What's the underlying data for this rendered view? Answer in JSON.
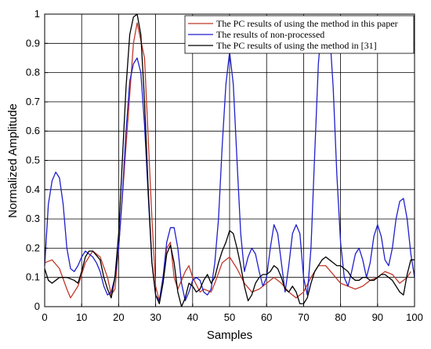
{
  "chart_data": {
    "type": "line",
    "xlabel": "Samples",
    "ylabel": "Normalized  Amplitude",
    "xlim": [
      0,
      100
    ],
    "ylim": [
      0,
      1
    ],
    "x_ticks": [
      0,
      10,
      20,
      30,
      40,
      50,
      60,
      70,
      80,
      90,
      100
    ],
    "y_ticks": [
      0,
      0.1,
      0.2,
      0.3,
      0.4,
      0.5,
      0.6,
      0.7,
      0.8,
      0.9,
      1
    ],
    "grid": true,
    "legend_position": "top-right",
    "series": [
      {
        "name": "The PC results of using the method in this paper",
        "color": "#c0392b",
        "points": [
          [
            0,
            0.15
          ],
          [
            2,
            0.16
          ],
          [
            4,
            0.13
          ],
          [
            6,
            0.06
          ],
          [
            7,
            0.03
          ],
          [
            9,
            0.07
          ],
          [
            11,
            0.15
          ],
          [
            13,
            0.19
          ],
          [
            15,
            0.17
          ],
          [
            17,
            0.1
          ],
          [
            18,
            0.04
          ],
          [
            19,
            0.06
          ],
          [
            20,
            0.2
          ],
          [
            22,
            0.55
          ],
          [
            24,
            0.9
          ],
          [
            25,
            0.97
          ],
          [
            27,
            0.85
          ],
          [
            29,
            0.3
          ],
          [
            30,
            0.07
          ],
          [
            31,
            0.02
          ],
          [
            32,
            0.1
          ],
          [
            33,
            0.2
          ],
          [
            34,
            0.22
          ],
          [
            35,
            0.1
          ],
          [
            36,
            0.06
          ],
          [
            38,
            0.12
          ],
          [
            39,
            0.14
          ],
          [
            40,
            0.1
          ],
          [
            42,
            0.05
          ],
          [
            43,
            0.06
          ],
          [
            45,
            0.05
          ],
          [
            46,
            0.08
          ],
          [
            48,
            0.15
          ],
          [
            50,
            0.17
          ],
          [
            52,
            0.13
          ],
          [
            54,
            0.08
          ],
          [
            56,
            0.05
          ],
          [
            58,
            0.06
          ],
          [
            60,
            0.08
          ],
          [
            62,
            0.1
          ],
          [
            64,
            0.08
          ],
          [
            66,
            0.05
          ],
          [
            68,
            0.03
          ],
          [
            70,
            0.05
          ],
          [
            72,
            0.1
          ],
          [
            74,
            0.14
          ],
          [
            76,
            0.14
          ],
          [
            78,
            0.11
          ],
          [
            80,
            0.08
          ],
          [
            82,
            0.07
          ],
          [
            84,
            0.06
          ],
          [
            86,
            0.07
          ],
          [
            88,
            0.09
          ],
          [
            90,
            0.1
          ],
          [
            92,
            0.12
          ],
          [
            94,
            0.11
          ],
          [
            96,
            0.08
          ],
          [
            98,
            0.1
          ],
          [
            99,
            0.12
          ]
        ]
      },
      {
        "name": "The results of non-processed",
        "color": "#1f1fcc",
        "points": [
          [
            0,
            0.14
          ],
          [
            1,
            0.35
          ],
          [
            2,
            0.43
          ],
          [
            3,
            0.46
          ],
          [
            4,
            0.44
          ],
          [
            5,
            0.35
          ],
          [
            6,
            0.2
          ],
          [
            7,
            0.13
          ],
          [
            8,
            0.12
          ],
          [
            9,
            0.14
          ],
          [
            10,
            0.17
          ],
          [
            11,
            0.19
          ],
          [
            12,
            0.18
          ],
          [
            13,
            0.17
          ],
          [
            14,
            0.15
          ],
          [
            15,
            0.12
          ],
          [
            16,
            0.07
          ],
          [
            17,
            0.04
          ],
          [
            18,
            0.05
          ],
          [
            19,
            0.1
          ],
          [
            20,
            0.2
          ],
          [
            21,
            0.38
          ],
          [
            22,
            0.6
          ],
          [
            23,
            0.77
          ],
          [
            24,
            0.83
          ],
          [
            25,
            0.85
          ],
          [
            26,
            0.8
          ],
          [
            27,
            0.62
          ],
          [
            28,
            0.38
          ],
          [
            29,
            0.15
          ],
          [
            30,
            0.04
          ],
          [
            31,
            0.02
          ],
          [
            32,
            0.1
          ],
          [
            33,
            0.22
          ],
          [
            34,
            0.27
          ],
          [
            35,
            0.27
          ],
          [
            36,
            0.2
          ],
          [
            37,
            0.08
          ],
          [
            38,
            0.02
          ],
          [
            39,
            0.05
          ],
          [
            40,
            0.09
          ],
          [
            41,
            0.1
          ],
          [
            42,
            0.09
          ],
          [
            43,
            0.05
          ],
          [
            44,
            0.04
          ],
          [
            45,
            0.06
          ],
          [
            46,
            0.15
          ],
          [
            47,
            0.3
          ],
          [
            48,
            0.55
          ],
          [
            49,
            0.76
          ],
          [
            50,
            0.87
          ],
          [
            51,
            0.76
          ],
          [
            52,
            0.5
          ],
          [
            53,
            0.25
          ],
          [
            54,
            0.12
          ],
          [
            55,
            0.17
          ],
          [
            56,
            0.2
          ],
          [
            57,
            0.18
          ],
          [
            58,
            0.12
          ],
          [
            59,
            0.07
          ],
          [
            60,
            0.1
          ],
          [
            61,
            0.2
          ],
          [
            62,
            0.28
          ],
          [
            63,
            0.25
          ],
          [
            64,
            0.15
          ],
          [
            65,
            0.05
          ],
          [
            66,
            0.14
          ],
          [
            67,
            0.25
          ],
          [
            68,
            0.28
          ],
          [
            69,
            0.25
          ],
          [
            70,
            0.1
          ],
          [
            71,
            0.04
          ],
          [
            72,
            0.2
          ],
          [
            73,
            0.52
          ],
          [
            74,
            0.83
          ],
          [
            75,
            0.98
          ],
          [
            76,
            0.99
          ],
          [
            77,
            0.95
          ],
          [
            78,
            0.75
          ],
          [
            79,
            0.45
          ],
          [
            80,
            0.22
          ],
          [
            81,
            0.1
          ],
          [
            82,
            0.07
          ],
          [
            83,
            0.12
          ],
          [
            84,
            0.18
          ],
          [
            85,
            0.2
          ],
          [
            86,
            0.16
          ],
          [
            87,
            0.1
          ],
          [
            88,
            0.15
          ],
          [
            89,
            0.24
          ],
          [
            90,
            0.28
          ],
          [
            91,
            0.24
          ],
          [
            92,
            0.16
          ],
          [
            93,
            0.14
          ],
          [
            94,
            0.2
          ],
          [
            95,
            0.3
          ],
          [
            96,
            0.36
          ],
          [
            97,
            0.37
          ],
          [
            98,
            0.3
          ],
          [
            99,
            0.18
          ],
          [
            100,
            0.1
          ]
        ]
      },
      {
        "name": "The PC results of using the method in [31]",
        "color": "#000000",
        "points": [
          [
            0,
            0.13
          ],
          [
            1,
            0.09
          ],
          [
            2,
            0.08
          ],
          [
            3,
            0.09
          ],
          [
            4,
            0.1
          ],
          [
            6,
            0.1
          ],
          [
            8,
            0.09
          ],
          [
            9,
            0.08
          ],
          [
            10,
            0.12
          ],
          [
            11,
            0.17
          ],
          [
            12,
            0.19
          ],
          [
            13,
            0.19
          ],
          [
            15,
            0.16
          ],
          [
            16,
            0.1
          ],
          [
            17,
            0.06
          ],
          [
            18,
            0.03
          ],
          [
            19,
            0.1
          ],
          [
            20,
            0.25
          ],
          [
            21,
            0.5
          ],
          [
            22,
            0.75
          ],
          [
            23,
            0.93
          ],
          [
            24,
            0.99
          ],
          [
            25,
            1.0
          ],
          [
            26,
            0.93
          ],
          [
            27,
            0.7
          ],
          [
            28,
            0.4
          ],
          [
            29,
            0.15
          ],
          [
            30,
            0.04
          ],
          [
            31,
            0.01
          ],
          [
            32,
            0.08
          ],
          [
            33,
            0.18
          ],
          [
            34,
            0.21
          ],
          [
            35,
            0.15
          ],
          [
            36,
            0.05
          ],
          [
            37,
            0.0
          ],
          [
            38,
            0.03
          ],
          [
            39,
            0.08
          ],
          [
            40,
            0.07
          ],
          [
            41,
            0.05
          ],
          [
            42,
            0.06
          ],
          [
            43,
            0.09
          ],
          [
            44,
            0.11
          ],
          [
            45,
            0.08
          ],
          [
            46,
            0.1
          ],
          [
            47,
            0.15
          ],
          [
            48,
            0.19
          ],
          [
            49,
            0.22
          ],
          [
            50,
            0.26
          ],
          [
            51,
            0.25
          ],
          [
            52,
            0.2
          ],
          [
            53,
            0.14
          ],
          [
            54,
            0.07
          ],
          [
            55,
            0.02
          ],
          [
            56,
            0.04
          ],
          [
            57,
            0.08
          ],
          [
            58,
            0.1
          ],
          [
            59,
            0.11
          ],
          [
            60,
            0.11
          ],
          [
            61,
            0.12
          ],
          [
            62,
            0.14
          ],
          [
            63,
            0.13
          ],
          [
            64,
            0.1
          ],
          [
            65,
            0.06
          ],
          [
            66,
            0.05
          ],
          [
            67,
            0.07
          ],
          [
            68,
            0.05
          ],
          [
            69,
            0.01
          ],
          [
            70,
            0.01
          ],
          [
            71,
            0.03
          ],
          [
            72,
            0.08
          ],
          [
            73,
            0.12
          ],
          [
            74,
            0.14
          ],
          [
            75,
            0.16
          ],
          [
            76,
            0.17
          ],
          [
            77,
            0.16
          ],
          [
            78,
            0.15
          ],
          [
            79,
            0.14
          ],
          [
            80,
            0.14
          ],
          [
            81,
            0.13
          ],
          [
            82,
            0.12
          ],
          [
            83,
            0.1
          ],
          [
            84,
            0.09
          ],
          [
            85,
            0.09
          ],
          [
            86,
            0.1
          ],
          [
            87,
            0.1
          ],
          [
            88,
            0.09
          ],
          [
            89,
            0.09
          ],
          [
            90,
            0.1
          ],
          [
            91,
            0.11
          ],
          [
            92,
            0.11
          ],
          [
            93,
            0.1
          ],
          [
            94,
            0.09
          ],
          [
            95,
            0.07
          ],
          [
            96,
            0.05
          ],
          [
            97,
            0.04
          ],
          [
            98,
            0.11
          ],
          [
            99,
            0.16
          ],
          [
            100,
            0.16
          ]
        ]
      }
    ]
  }
}
